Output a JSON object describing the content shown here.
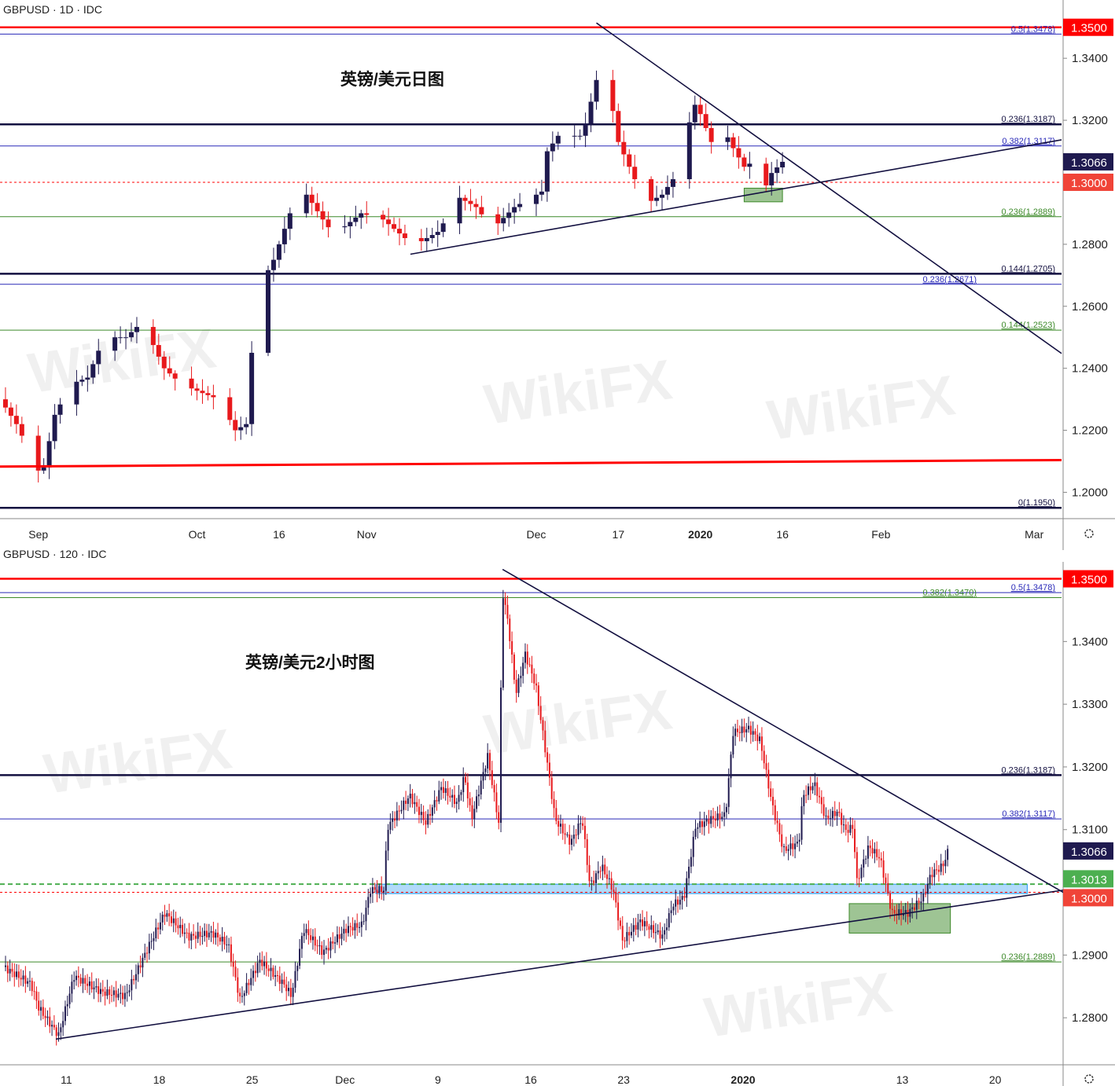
{
  "watermark": "WikiFX",
  "colors": {
    "up": "#1f1a4f",
    "down": "#e8191c",
    "red": "#ff0000",
    "navy": "#131040",
    "blue": "#2a2ab8",
    "green": "#3d8a2a",
    "last": "#1f1a4f",
    "level13013": "#4caf50",
    "level13000": "#f04438"
  },
  "chart_data": [
    {
      "type": "candlestick",
      "header": "GBPUSD · 1D · IDC",
      "title": "英镑/美元日图",
      "x_ticks": [
        {
          "label": "Sep",
          "date": "2019-09-02",
          "bold": false
        },
        {
          "label": "Oct",
          "date": "2019-10-01",
          "bold": false
        },
        {
          "label": "16",
          "date": "2019-10-16",
          "bold": false
        },
        {
          "label": "Nov",
          "date": "2019-11-01",
          "bold": false
        },
        {
          "label": "Dec",
          "date": "2019-12-02",
          "bold": false
        },
        {
          "label": "17",
          "date": "2019-12-17",
          "bold": false
        },
        {
          "label": "2020",
          "date": "2020-01-01",
          "bold": true
        },
        {
          "label": "16",
          "date": "2020-01-16",
          "bold": false
        },
        {
          "label": "Feb",
          "date": "2020-02-03",
          "bold": false
        },
        {
          "label": "Mar",
          "date": "2020-03-02",
          "bold": false
        }
      ],
      "y_ticks": [
        "1.3400",
        "1.3200",
        "1.2800",
        "1.2600",
        "1.2400",
        "1.2200",
        "1.2000"
      ],
      "ylim": [
        1.1915,
        1.3588
      ],
      "xlim": [
        "2019-08-26",
        "2020-03-07"
      ],
      "closes": [
        [
          "2019-08-26",
          1.23
        ],
        [
          "2019-08-29",
          1.222
        ],
        [
          "2019-09-02",
          1.207
        ],
        [
          "2019-09-03",
          1.208
        ],
        [
          "2019-09-05",
          1.225
        ],
        [
          "2019-09-08",
          1.235
        ],
        [
          "2019-09-11",
          1.237
        ],
        [
          "2019-09-14",
          1.25
        ],
        [
          "2019-09-18",
          1.25
        ],
        [
          "2019-09-21",
          1.255
        ],
        [
          "2019-09-25",
          1.24
        ],
        [
          "2019-09-28",
          1.235
        ],
        [
          "2019-10-02",
          1.232
        ],
        [
          "2019-10-05",
          1.23
        ],
        [
          "2019-10-08",
          1.22
        ],
        [
          "2019-10-10",
          1.222
        ],
        [
          "2019-10-11",
          1.245
        ],
        [
          "2019-10-12",
          1.265
        ],
        [
          "2019-10-15",
          1.275
        ],
        [
          "2019-10-18",
          1.29
        ],
        [
          "2019-10-21",
          1.296
        ],
        [
          "2019-10-24",
          1.288
        ],
        [
          "2019-10-26",
          1.283
        ],
        [
          "2019-10-31",
          1.29
        ],
        [
          "2019-11-04",
          1.288
        ],
        [
          "2019-11-08",
          1.282
        ],
        [
          "2019-11-10",
          1.28
        ],
        [
          "2019-11-14",
          1.284
        ],
        [
          "2019-11-18",
          1.295
        ],
        [
          "2019-11-21",
          1.292
        ],
        [
          "2019-11-24",
          1.285
        ],
        [
          "2019-11-28",
          1.292
        ],
        [
          "2019-12-03",
          1.297
        ],
        [
          "2019-12-04",
          1.31
        ],
        [
          "2019-12-06",
          1.315
        ],
        [
          "2019-12-10",
          1.315
        ],
        [
          "2019-12-11",
          1.319
        ],
        [
          "2019-12-13",
          1.333
        ],
        [
          "2019-12-15",
          1.333
        ],
        [
          "2019-12-17",
          1.313
        ],
        [
          "2019-12-19",
          1.305
        ],
        [
          "2019-12-20",
          1.301
        ],
        [
          "2019-12-23",
          1.294
        ],
        [
          "2019-12-25",
          1.296
        ],
        [
          "2019-12-27",
          1.301
        ],
        [
          "2019-12-28",
          1.308
        ],
        [
          "2019-12-31",
          1.325
        ],
        [
          "2020-01-01",
          1.322
        ],
        [
          "2020-01-03",
          1.313
        ],
        [
          "2020-01-05",
          1.318
        ],
        [
          "2020-01-07",
          1.311
        ],
        [
          "2020-01-09",
          1.305
        ],
        [
          "2020-01-10",
          1.306
        ],
        [
          "2020-01-11",
          1.299
        ],
        [
          "2020-01-13",
          1.299
        ],
        [
          "2020-01-14",
          1.303
        ],
        [
          "2020-01-16",
          1.3066
        ]
      ],
      "levels": [
        {
          "price": 1.35,
          "color": "red",
          "style": "solid",
          "weight": "thick"
        },
        {
          "price": 1.3478,
          "color": "blue",
          "style": "solid",
          "weight": "thin",
          "label": "0.5(1.3478)"
        },
        {
          "price": 1.3187,
          "color": "navy",
          "style": "solid",
          "weight": "thick",
          "label": "0.236(1.3187)"
        },
        {
          "price": 1.3117,
          "color": "blue",
          "style": "solid",
          "weight": "thin",
          "label": "0.382(1.3117)"
        },
        {
          "price": 1.3,
          "color": "red",
          "style": "dashed",
          "weight": "thin"
        },
        {
          "price": 1.2889,
          "color": "green",
          "style": "solid",
          "weight": "thin",
          "label": "0.236(1.2889)"
        },
        {
          "price": 1.2705,
          "color": "navy",
          "style": "solid",
          "weight": "thick",
          "label": "0.144(1.2705)"
        },
        {
          "price": 1.2671,
          "color": "blue",
          "style": "solid",
          "weight": "thin",
          "label": "0.236(1.2671)"
        },
        {
          "price": 1.2523,
          "color": "green",
          "style": "solid",
          "weight": "thin",
          "label": "0.144(1.2523)"
        },
        {
          "price": 1.195,
          "color": "navy",
          "style": "solid",
          "weight": "thick",
          "label": "0(1.1950)"
        }
      ],
      "trendlines": [
        {
          "from": [
            "2019-08-26",
            1.2083
          ],
          "to": [
            "2020-03-07",
            1.2104
          ],
          "color": "red",
          "weight": "thick"
        },
        {
          "from": [
            "2019-12-13",
            1.3514
          ],
          "to": [
            "2020-03-07",
            1.2448
          ],
          "color": "navy",
          "weight": "thin"
        },
        {
          "from": [
            "2019-11-09",
            1.2768
          ],
          "to": [
            "2020-03-07",
            1.3137
          ],
          "color": "navy",
          "weight": "thin"
        }
      ],
      "boxes": [
        {
          "from": "2020-01-09",
          "to": "2020-01-16",
          "top": 1.2981,
          "bottom": 1.2937,
          "color": "green"
        }
      ],
      "price_labels": [
        {
          "text": "1.3500",
          "price": 1.35,
          "color": "red"
        },
        {
          "text": "1.3066",
          "price": 1.3066,
          "color": "last"
        },
        {
          "text": "1.3000",
          "price": 1.3,
          "color": "level13000"
        }
      ]
    },
    {
      "type": "candlestick",
      "header": "GBPUSD · 120 · IDC",
      "title": "英镑/美元2小时图",
      "x_ticks": [
        {
          "label": "11",
          "date": "2019-11-11",
          "bold": false
        },
        {
          "label": "18",
          "date": "2019-11-18",
          "bold": false
        },
        {
          "label": "25",
          "date": "2019-11-25",
          "bold": false
        },
        {
          "label": "Dec",
          "date": "2019-12-02",
          "bold": false
        },
        {
          "label": "9",
          "date": "2019-12-09",
          "bold": false
        },
        {
          "label": "16",
          "date": "2019-12-16",
          "bold": false
        },
        {
          "label": "23",
          "date": "2019-12-23",
          "bold": false
        },
        {
          "label": "2020",
          "date": "2020-01-01",
          "bold": true
        },
        {
          "label": "13",
          "date": "2020-01-13",
          "bold": false
        },
        {
          "label": "20",
          "date": "2020-01-20",
          "bold": false
        }
      ],
      "y_ticks": [
        "1.3400",
        "1.3300",
        "1.3200",
        "1.3100",
        "1.2900",
        "1.2800"
      ],
      "ylim": [
        1.2725,
        1.3527
      ],
      "xlim": [
        "2019-11-06",
        "2020-01-25"
      ],
      "closes": [
        [
          "2019-11-06 06:00",
          1.2881
        ],
        [
          "2019-11-08 08:00",
          1.2854
        ],
        [
          "2019-11-08 22:00",
          1.2816
        ],
        [
          "2019-11-10 10:00",
          1.2772
        ],
        [
          "2019-11-11 14:00",
          1.2866
        ],
        [
          "2019-11-13 16:00",
          1.2841
        ],
        [
          "2019-11-15 11:00",
          1.2835
        ],
        [
          "2019-11-17 06:00",
          1.2916
        ],
        [
          "2019-11-18 10:00",
          1.2967
        ],
        [
          "2019-11-20 05:00",
          1.2929
        ],
        [
          "2019-11-22 00:00",
          1.2935
        ],
        [
          "2019-11-23 05:00",
          1.2916
        ],
        [
          "2019-11-24 02:00",
          1.2829
        ],
        [
          "2019-11-25 14:00",
          1.2891
        ],
        [
          "2019-11-27 09:00",
          1.2854
        ],
        [
          "2019-11-27 23:00",
          1.2835
        ],
        [
          "2019-11-28 21:00",
          1.2942
        ],
        [
          "2019-11-30 08:00",
          1.2904
        ],
        [
          "2019-12-02 03:00",
          1.2942
        ],
        [
          "2019-12-03 07:00",
          1.2948
        ],
        [
          "2019-12-03 22:00",
          1.3004
        ],
        [
          "2019-12-04 22:00",
          1.3004
        ],
        [
          "2019-12-05 05:00",
          1.3104
        ],
        [
          "2019-12-06 21:00",
          1.3154
        ],
        [
          "2019-12-08 02:00",
          1.3111
        ],
        [
          "2019-12-09 06:00",
          1.3167
        ],
        [
          "2019-12-10 11:00",
          1.3142
        ],
        [
          "2019-12-11 00:00",
          1.3186
        ],
        [
          "2019-12-11 13:00",
          1.3117
        ],
        [
          "2019-12-12 18:00",
          1.3217
        ],
        [
          "2019-12-13 14:00",
          1.3111
        ],
        [
          "2019-12-13 21:00",
          1.348
        ],
        [
          "2019-12-14 07:00",
          1.343
        ],
        [
          "2019-12-14 21:00",
          1.3317
        ],
        [
          "2019-12-15 14:00",
          1.338
        ],
        [
          "2019-12-16 09:00",
          1.333
        ],
        [
          "2019-12-17 06:00",
          1.3205
        ],
        [
          "2019-12-17 20:00",
          1.3117
        ],
        [
          "2019-12-19 00:00",
          1.3079
        ],
        [
          "2019-12-19 21:00",
          1.3117
        ],
        [
          "2019-12-20 11:00",
          1.301
        ],
        [
          "2019-12-21 08:00",
          1.3042
        ],
        [
          "2019-12-22 05:00",
          1.3004
        ],
        [
          "2019-12-22 22:00",
          1.2923
        ],
        [
          "2019-12-24 06:00",
          1.2954
        ],
        [
          "2019-12-25 23:00",
          1.2929
        ],
        [
          "2019-12-26 16:00",
          1.2979
        ],
        [
          "2019-12-27 13:00",
          1.2992
        ],
        [
          "2019-12-28 10:00",
          1.3104
        ],
        [
          "2019-12-29 14:00",
          1.3117
        ],
        [
          "2019-12-30 16:00",
          1.3123
        ],
        [
          "2019-12-31 06:00",
          1.3255
        ],
        [
          "2020-01-01 10:00",
          1.3261
        ],
        [
          "2020-01-02 07:00",
          1.3242
        ],
        [
          "2020-01-03 04:00",
          1.3142
        ],
        [
          "2020-01-04 01:00",
          1.3067
        ],
        [
          "2020-01-05 05:00",
          1.3079
        ],
        [
          "2020-01-05 12:00",
          1.3154
        ],
        [
          "2020-01-06 09:00",
          1.3173
        ],
        [
          "2020-01-07 06:00",
          1.3117
        ],
        [
          "2020-01-08 03:00",
          1.3129
        ],
        [
          "2020-01-08 17:00",
          1.3098
        ],
        [
          "2020-01-09 07:00",
          1.3104
        ],
        [
          "2020-01-09 14:00",
          1.3017
        ],
        [
          "2020-01-10 11:00",
          1.3073
        ],
        [
          "2020-01-11 08:00",
          1.3054
        ],
        [
          "2020-01-12 05:00",
          1.2967
        ],
        [
          "2020-01-13 10:00",
          1.2967
        ],
        [
          "2020-01-14 14:00",
          1.2992
        ],
        [
          "2020-01-15 04:00",
          1.3029
        ],
        [
          "2020-01-16 01:00",
          1.3042
        ],
        [
          "2020-01-16 11:00",
          1.3066
        ]
      ],
      "levels": [
        {
          "price": 1.35,
          "color": "red",
          "style": "solid",
          "weight": "thick"
        },
        {
          "price": 1.3478,
          "color": "blue",
          "style": "solid",
          "weight": "thin",
          "label": "0.5(1.3478)"
        },
        {
          "price": 1.347,
          "color": "green",
          "style": "solid",
          "weight": "thin",
          "label": "0.382(1.3470)"
        },
        {
          "price": 1.3187,
          "color": "navy",
          "style": "solid",
          "weight": "thick",
          "label": "0.236(1.3187)"
        },
        {
          "price": 1.3117,
          "color": "blue",
          "style": "solid",
          "weight": "thin",
          "label": "0.382(1.3117)"
        },
        {
          "price": 1.3013,
          "color": "level13013",
          "style": "dashed",
          "weight": "mid"
        },
        {
          "price": 1.3,
          "color": "red",
          "style": "dashed",
          "weight": "thin"
        },
        {
          "price": 1.2889,
          "color": "green",
          "style": "solid",
          "weight": "thin",
          "label": "0.236(1.2889)"
        }
      ],
      "trendlines": [
        {
          "from": [
            "2019-12-13 21:00",
            1.3515
          ],
          "to": [
            "2020-01-25 07:00",
            1.2998
          ],
          "color": "navy",
          "weight": "thin"
        },
        {
          "from": [
            "2019-11-10 05:00",
            1.2766
          ],
          "to": [
            "2020-01-25 07:00",
            1.3004
          ],
          "color": "navy",
          "weight": "thin"
        }
      ],
      "boxes": [
        {
          "from": "2019-12-04 08:00",
          "to": "2020-01-22 10:00",
          "top": 1.3013,
          "bottom": 1.2998,
          "color": "lightblue"
        },
        {
          "from": "2020-01-09 00:00",
          "to": "2020-01-16 15:00",
          "top": 1.2982,
          "bottom": 1.2935,
          "color": "green"
        }
      ],
      "price_labels": [
        {
          "text": "1.3500",
          "price": 1.35,
          "color": "red"
        },
        {
          "text": "1.3066",
          "price": 1.3066,
          "color": "last"
        },
        {
          "text": "1.3013",
          "price": 1.3013,
          "color": "level13013"
        },
        {
          "text": "1.3000",
          "price": 1.3,
          "color": "level13000"
        }
      ]
    }
  ]
}
